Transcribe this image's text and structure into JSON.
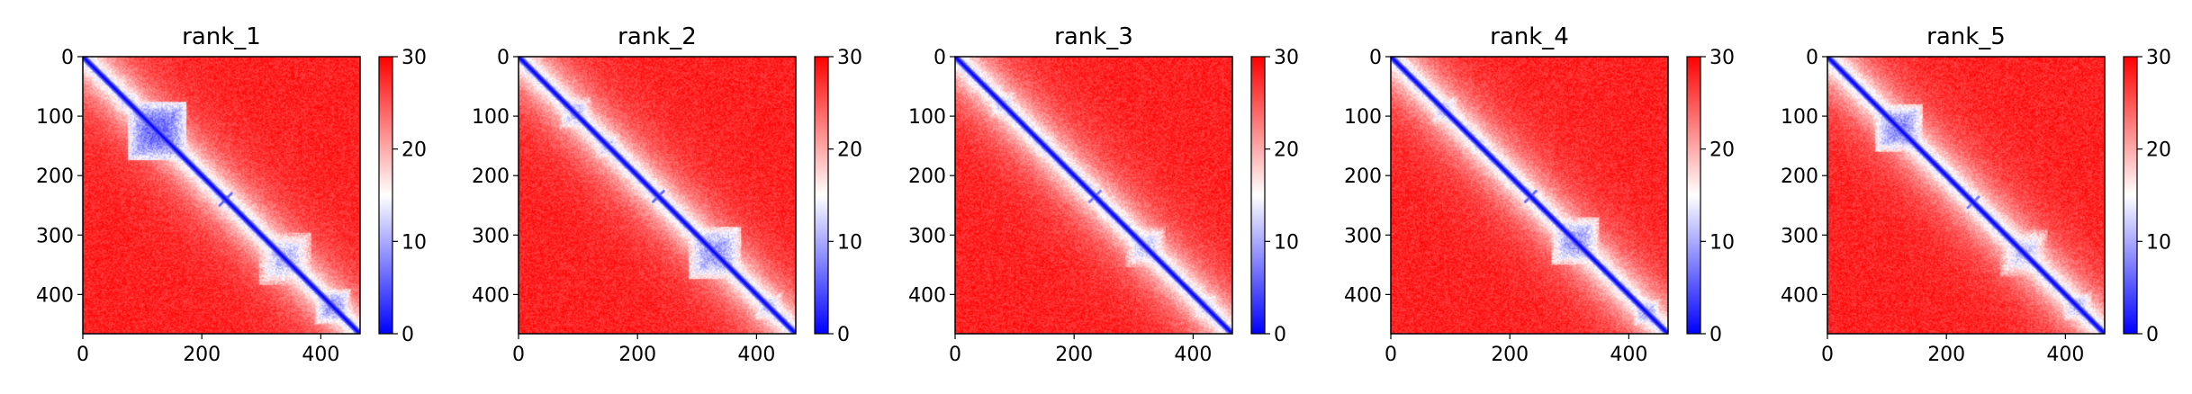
{
  "chart_data": {
    "type": "heatmap",
    "n": 466,
    "colorbar": {
      "min": 0,
      "max": 30,
      "ticks": [
        0,
        10,
        20,
        30
      ],
      "colors": {
        "low": "#0000ff",
        "mid": "#ffffff",
        "high": "#ff0000"
      }
    },
    "x_ticks": [
      0,
      200,
      400
    ],
    "y_ticks": [
      0,
      100,
      200,
      300,
      400
    ],
    "panels": [
      {
        "title": "rank_1",
        "features": [
          {
            "type": "block",
            "center": [
              125,
              125
            ],
            "size": 100,
            "value": 3
          },
          {
            "type": "block",
            "center": [
              340,
              340
            ],
            "size": 90,
            "value": 8
          },
          {
            "type": "block",
            "center": [
              420,
              420
            ],
            "size": 60,
            "value": 6
          },
          {
            "type": "block",
            "center": [
              75,
              75
            ],
            "size": 40,
            "value": 9
          },
          {
            "type": "cross",
            "center": [
              240,
              240
            ],
            "size": 24,
            "value": 6
          }
        ]
      },
      {
        "title": "rank_2",
        "features": [
          {
            "type": "block",
            "center": [
              95,
              95
            ],
            "size": 55,
            "value": 8
          },
          {
            "type": "block",
            "center": [
              150,
              150
            ],
            "size": 45,
            "value": 9
          },
          {
            "type": "block",
            "center": [
              330,
              330
            ],
            "size": 90,
            "value": 6
          },
          {
            "type": "block",
            "center": [
              420,
              420
            ],
            "size": 50,
            "value": 9
          },
          {
            "type": "cross",
            "center": [
              235,
              235
            ],
            "size": 24,
            "value": 6
          }
        ]
      },
      {
        "title": "rank_3",
        "features": [
          {
            "type": "block",
            "center": [
              80,
              80
            ],
            "size": 45,
            "value": 9
          },
          {
            "type": "block",
            "center": [
              150,
              150
            ],
            "size": 40,
            "value": 10
          },
          {
            "type": "block",
            "center": [
              320,
              320
            ],
            "size": 70,
            "value": 9
          },
          {
            "type": "block",
            "center": [
              420,
              420
            ],
            "size": 50,
            "value": 10
          },
          {
            "type": "cross",
            "center": [
              235,
              235
            ],
            "size": 22,
            "value": 7
          }
        ]
      },
      {
        "title": "rank_4",
        "features": [
          {
            "type": "block",
            "center": [
              90,
              90
            ],
            "size": 50,
            "value": 9
          },
          {
            "type": "block",
            "center": [
              150,
              150
            ],
            "size": 40,
            "value": 10
          },
          {
            "type": "block",
            "center": [
              310,
              310
            ],
            "size": 80,
            "value": 6
          },
          {
            "type": "block",
            "center": [
              430,
              430
            ],
            "size": 45,
            "value": 7
          },
          {
            "type": "cross",
            "center": [
              235,
              235
            ],
            "size": 22,
            "value": 6
          }
        ]
      },
      {
        "title": "rank_5",
        "features": [
          {
            "type": "block",
            "center": [
              120,
              120
            ],
            "size": 80,
            "value": 5
          },
          {
            "type": "block",
            "center": [
              330,
              330
            ],
            "size": 80,
            "value": 9
          },
          {
            "type": "block",
            "center": [
              420,
              420
            ],
            "size": 50,
            "value": 8
          },
          {
            "type": "cross",
            "center": [
              245,
              245
            ],
            "size": 22,
            "value": 7
          }
        ]
      }
    ]
  }
}
